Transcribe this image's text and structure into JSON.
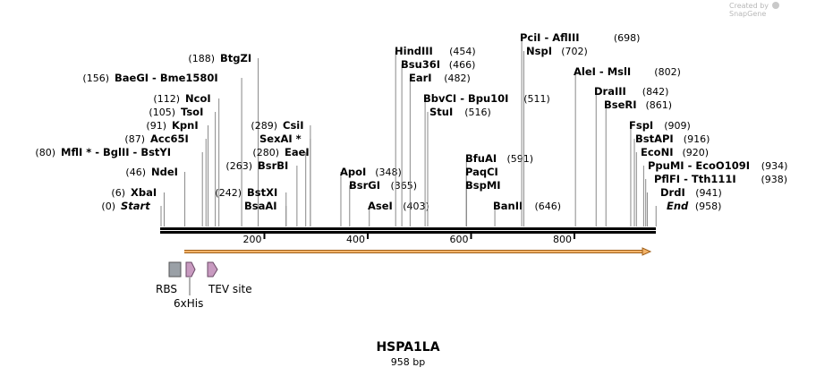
{
  "watermark": {
    "prefix": "Created by",
    "brand": "SnapGene"
  },
  "plasmid": {
    "name": "HSPA1LA",
    "length_label": "958 bp",
    "length_bp": 958
  },
  "ticks": [
    200,
    400,
    600,
    800
  ],
  "colors": {
    "backbone": "#000000",
    "arrow_fill": "#f4b46a",
    "arrow_stroke": "#a0601a",
    "rbs": "#9aa0a6",
    "his": "#c89ac0",
    "tev": "#c89ac0"
  },
  "enzymes": [
    {
      "name": "Start",
      "pos": "(0)",
      "bp": 0,
      "italic": true
    },
    {
      "name": "XbaI",
      "pos": "(6)",
      "bp": 6
    },
    {
      "name": "NdeI",
      "pos": "(46)",
      "bp": 46
    },
    {
      "name": "MflI * - BglII - BstYI",
      "pos": "(80)",
      "bp": 80
    },
    {
      "name": "Acc65I",
      "pos": "(87)",
      "bp": 87
    },
    {
      "name": "KpnI",
      "pos": "(91)",
      "bp": 91
    },
    {
      "name": "TsoI",
      "pos": "(105)",
      "bp": 105
    },
    {
      "name": "NcoI",
      "pos": "(112)",
      "bp": 112
    },
    {
      "name": "BaeGI - Bme1580I",
      "pos": "(156)",
      "bp": 156
    },
    {
      "name": "BtgZI",
      "pos": "(188)",
      "bp": 188
    },
    {
      "name": "BstXI",
      "pos": "(242)",
      "bp": 242
    },
    {
      "name": "BsaAI",
      "pos": "",
      "bp": 242
    },
    {
      "name": "BsrBI",
      "pos": "(263)",
      "bp": 263
    },
    {
      "name": "EaeI",
      "pos": "(280)",
      "bp": 280
    },
    {
      "name": "CsiI",
      "pos": "(289)",
      "bp": 289
    },
    {
      "name": "SexAI *",
      "pos": "",
      "bp": 289
    },
    {
      "name": "ApoI",
      "pos": "(348)",
      "bp": 348
    },
    {
      "name": "BsrGI",
      "pos": "(365)",
      "bp": 365
    },
    {
      "name": "AseI",
      "pos": "(403)",
      "bp": 403
    },
    {
      "name": "HindIII",
      "pos": "(454)",
      "bp": 454
    },
    {
      "name": "Bsu36I",
      "pos": "(466)",
      "bp": 466
    },
    {
      "name": "EarI",
      "pos": "(482)",
      "bp": 482
    },
    {
      "name": "BbvCI - Bpu10I",
      "pos": "(511)",
      "bp": 511
    },
    {
      "name": "StuI",
      "pos": "(516)",
      "bp": 516
    },
    {
      "name": "BfuAI",
      "pos": "(591)",
      "bp": 591
    },
    {
      "name": "PaqCI",
      "pos": "",
      "bp": 591
    },
    {
      "name": "BspMI",
      "pos": "",
      "bp": 591
    },
    {
      "name": "BanII",
      "pos": "(646)",
      "bp": 646
    },
    {
      "name": "PciI - AflIII",
      "pos": "(698)",
      "bp": 698
    },
    {
      "name": "NspI",
      "pos": "(702)",
      "bp": 702
    },
    {
      "name": "AleI - MslI",
      "pos": "(802)",
      "bp": 802
    },
    {
      "name": "DraIII",
      "pos": "(842)",
      "bp": 842
    },
    {
      "name": "BseRI",
      "pos": "(861)",
      "bp": 861
    },
    {
      "name": "FspI",
      "pos": "(909)",
      "bp": 909
    },
    {
      "name": "BstAPI",
      "pos": "(916)",
      "bp": 916
    },
    {
      "name": "EcoNI",
      "pos": "(920)",
      "bp": 920
    },
    {
      "name": "PpuMI - EcoO109I",
      "pos": "(934)",
      "bp": 934
    },
    {
      "name": "PflFI - Tth111I",
      "pos": "(938)",
      "bp": 938
    },
    {
      "name": "DrdI",
      "pos": "(941)",
      "bp": 941
    },
    {
      "name": "End",
      "pos": "(958)",
      "bp": 958,
      "italic": true
    }
  ],
  "features": [
    {
      "name": "RBS",
      "kind": "rbs"
    },
    {
      "name": "6xHis",
      "kind": "his"
    },
    {
      "name": "TEV site",
      "kind": "tev"
    }
  ]
}
